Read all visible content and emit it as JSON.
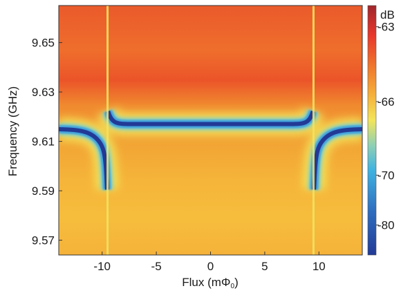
{
  "chart_data": {
    "type": "heatmap",
    "title": "",
    "xlabel": "Flux (mΦ",
    "xlabel_sub": "0",
    "xlabel_close": ")",
    "ylabel": "Frequency (GHz)",
    "xlim": [
      -14,
      14
    ],
    "ylim": [
      9.564,
      9.665
    ],
    "x_ticks": [
      -10,
      -5,
      0,
      5,
      10
    ],
    "x_tick_labels": [
      "-10",
      "-5",
      "0",
      "5",
      "10"
    ],
    "y_ticks": [
      9.57,
      9.59,
      9.61,
      9.63,
      9.65
    ],
    "y_tick_labels": [
      "9.57",
      "9.59",
      "9.61",
      "9.63",
      "9.65"
    ],
    "colorbar": {
      "unit_label": "dB",
      "ticks": [
        -63,
        -66,
        -70,
        -80
      ],
      "tick_labels": [
        "-63",
        "-66",
        "-70",
        "-80"
      ],
      "colors": [
        "#a0262b",
        "#e8372b",
        "#f07a2d",
        "#f6b13a",
        "#f3e55a",
        "#8fd0b4",
        "#3fb3e0",
        "#2f6fc0",
        "#223a96"
      ]
    },
    "resonance": {
      "flux_transitions": [
        -9.5,
        9.5
      ],
      "center_frequency": 9.617,
      "outer_frequency": 9.615,
      "dip_depth_db": -80,
      "background_db": -64
    }
  }
}
